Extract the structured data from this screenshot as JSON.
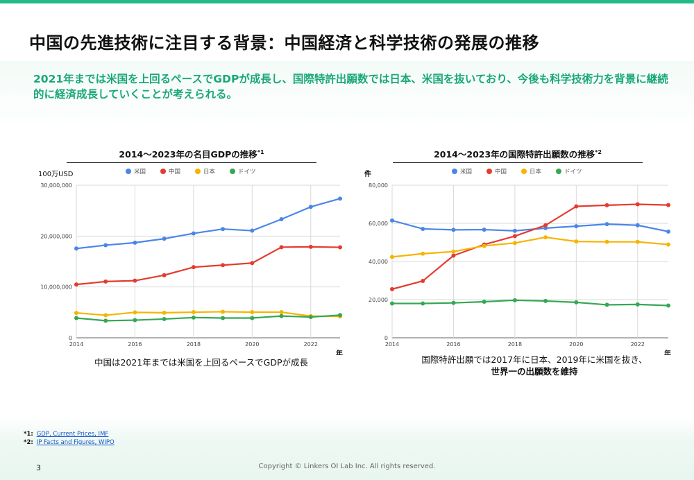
{
  "slide": {
    "title": "中国の先進技術に注目する背景：中国経済と科学技術の発展の推移",
    "lead": "2021年までは米国を上回るペースでGDPが成長し、国際特許出願数では日本、米国を抜いており、今後も科学技術力を背景に継続的に経済成長していくことが考えられる。",
    "page_number": "3",
    "copyright": "Copyright © Linkers OI Lab Inc. All rights reserved."
  },
  "footnotes": [
    {
      "mark": "*1:",
      "text": "GDP, Current Prices, IMF"
    },
    {
      "mark": "*2:",
      "text": "IP Facts and Figures, WIPO"
    }
  ],
  "chart_data": [
    {
      "type": "line",
      "title": "2014〜2023年の名目GDPの推移",
      "title_sup": "*1",
      "ylabel": "100万USD",
      "xlabel": "年",
      "x": [
        2014,
        2015,
        2016,
        2017,
        2018,
        2019,
        2020,
        2021,
        2022,
        2023
      ],
      "x_ticks": [
        "2014",
        "2016",
        "2018",
        "2020",
        "2022"
      ],
      "ylim": [
        0,
        30000000
      ],
      "y_ticks": [
        0,
        10000000,
        20000000,
        30000000
      ],
      "y_tick_labels": [
        "0",
        "10,000,000",
        "20,000,000",
        "30,000,000"
      ],
      "grid": true,
      "series": [
        {
          "name": "米国",
          "color": "#4a86e8",
          "values": [
            17550000,
            18210000,
            18700000,
            19480000,
            20530000,
            21380000,
            21060000,
            23320000,
            25740000,
            27360000
          ]
        },
        {
          "name": "中国",
          "color": "#e53b2f",
          "values": [
            10480000,
            11060000,
            11230000,
            12310000,
            13890000,
            14280000,
            14690000,
            17820000,
            17880000,
            17790000
          ]
        },
        {
          "name": "日本",
          "color": "#f6b400",
          "values": [
            4900000,
            4440000,
            5000000,
            4930000,
            5040000,
            5120000,
            5050000,
            5040000,
            4260000,
            4210000
          ]
        },
        {
          "name": "ドイツ",
          "color": "#34a853",
          "values": [
            3890000,
            3360000,
            3470000,
            3690000,
            3980000,
            3890000,
            3890000,
            4280000,
            4080000,
            4460000
          ]
        }
      ],
      "caption_lines": [
        "中国は2021年までは米国を上回るペースでGDPが成長"
      ]
    },
    {
      "type": "line",
      "title": "2014〜2023年の国際特許出願数の推移",
      "title_sup": "*2",
      "ylabel": "件",
      "xlabel": "年",
      "x": [
        2014,
        2015,
        2016,
        2017,
        2018,
        2019,
        2020,
        2021,
        2022,
        2023
      ],
      "x_ticks": [
        "2014",
        "2016",
        "2018",
        "2020",
        "2022"
      ],
      "ylim": [
        0,
        80000
      ],
      "y_ticks": [
        0,
        20000,
        40000,
        60000,
        80000
      ],
      "y_tick_labels": [
        "0",
        "20,000",
        "40,000",
        "60,000",
        "80,000"
      ],
      "grid": true,
      "series": [
        {
          "name": "米国",
          "color": "#4a86e8",
          "values": [
            61500,
            57100,
            56600,
            56700,
            56100,
            57500,
            58500,
            59600,
            59000,
            55700
          ]
        },
        {
          "name": "中国",
          "color": "#e53b2f",
          "values": [
            25500,
            29800,
            43100,
            48900,
            53300,
            59000,
            68900,
            69500,
            70000,
            69600
          ]
        },
        {
          "name": "日本",
          "color": "#f6b400",
          "values": [
            42400,
            44100,
            45200,
            48200,
            49700,
            52700,
            50500,
            50300,
            50300,
            48900
          ]
        },
        {
          "name": "ドイツ",
          "color": "#34a853",
          "values": [
            18000,
            18000,
            18300,
            18900,
            19700,
            19300,
            18600,
            17300,
            17500,
            16900
          ]
        }
      ],
      "caption_lines": [
        "国際特許出願では2017年に日本、2019年に米国を抜き、",
        "世界一の出願数を維持"
      ]
    }
  ]
}
